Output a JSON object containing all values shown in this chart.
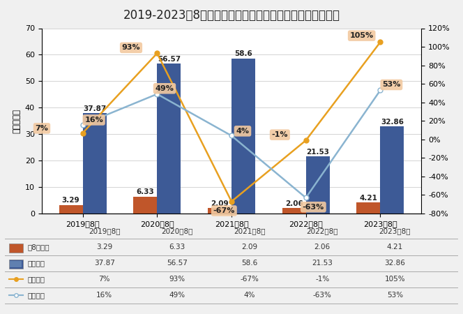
{
  "title": "2019-2023年8月牡引车市场销量及增幅走势（单位：万辆）",
  "ylabel_left": "单位：万辆",
  "categories": [
    "2019年8月",
    "2020年8月",
    "2021年8月",
    "2022年8月",
    "2023年8月"
  ],
  "monthly_sales": [
    3.29,
    6.33,
    2.09,
    2.06,
    4.21
  ],
  "cumulative_sales": [
    37.87,
    56.57,
    58.6,
    21.53,
    32.86
  ],
  "yoy_growth": [
    7,
    93,
    -67,
    -1,
    105
  ],
  "cumulative_growth": [
    16,
    49,
    4,
    -63,
    53
  ],
  "yoy_labels": [
    "7%",
    "93%",
    "-67%",
    "-1%",
    "105%"
  ],
  "cum_labels": [
    "16%",
    "49%",
    "4%",
    "-63%",
    "53%"
  ],
  "bar_color_monthly": "#c0562a",
  "bar_color_cumulative": "#3d5a96",
  "line_color_yoy": "#e8a020",
  "line_color_cum": "#8ab4d0",
  "annotation_bg": "#f2c9a0",
  "ylim_left": [
    0,
    70
  ],
  "ylim_right": [
    -80,
    120
  ],
  "yticks_left": [
    0,
    10,
    20,
    30,
    40,
    50,
    60,
    70
  ],
  "yticks_right": [
    -80,
    -60,
    -40,
    -20,
    0,
    20,
    40,
    60,
    80,
    100,
    120
  ],
  "title_fontsize": 12,
  "background_color": "#f0f0f0",
  "plot_bg_color": "#ffffff",
  "legend_labels": [
    "轧8月销量",
    "累计销量",
    "同比增幅",
    "累计增幅"
  ],
  "table_monthly": [
    "3.29",
    "6.33",
    "2.09",
    "2.06",
    "4.21"
  ],
  "table_cumulative": [
    "37.87",
    "56.57",
    "58.6",
    "21.53",
    "32.86"
  ],
  "table_yoy": [
    "7%",
    "93%",
    "-67%",
    "-1%",
    "105%"
  ],
  "table_cum": [
    "16%",
    "49%",
    "4%",
    "-63%",
    "53%"
  ]
}
